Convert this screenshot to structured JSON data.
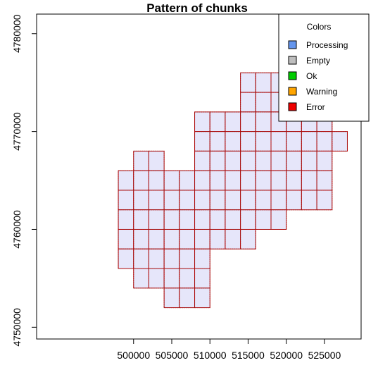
{
  "chart_data": {
    "type": "map",
    "title": "Pattern of chunks",
    "xlabel": "",
    "ylabel": "",
    "xlim": [
      487300,
      529800
    ],
    "ylim": [
      4748800,
      4782000
    ],
    "x_ticks": [
      500000,
      505000,
      510000,
      515000,
      520000,
      525000
    ],
    "x_tick_labels": [
      "500000",
      "505000",
      "510000",
      "515000",
      "520000",
      "525000"
    ],
    "y_ticks": [
      4750000,
      4760000,
      4770000,
      4780000
    ],
    "y_tick_labels": [
      "4750000",
      "4760000",
      "4770000",
      "4780000"
    ],
    "chunk_size": 2000,
    "grid_origin": [
      498000,
      4752000
    ],
    "rows": [
      {
        "y": 4776000,
        "x_from": 522000,
        "x_to": 524000
      },
      {
        "y": 4774000,
        "x_from": 514000,
        "x_to": 524000
      },
      {
        "y": 4772000,
        "x_from": 514000,
        "x_to": 524000
      },
      {
        "y": 4770000,
        "x_from": 508000,
        "x_to": 524000
      },
      {
        "y": 4768000,
        "x_from": 508000,
        "x_to": 526000
      },
      {
        "y": 4766000,
        "x_from": 500000,
        "x_to": 502000
      },
      {
        "y": 4766000,
        "x_from": 508000,
        "x_to": 524000
      },
      {
        "y": 4764000,
        "x_from": 498000,
        "x_to": 524000
      },
      {
        "y": 4762000,
        "x_from": 498000,
        "x_to": 524000
      },
      {
        "y": 4760000,
        "x_from": 498000,
        "x_to": 518000
      },
      {
        "y": 4758000,
        "x_from": 498000,
        "x_to": 514000
      },
      {
        "y": 4756000,
        "x_from": 498000,
        "x_to": 508000
      },
      {
        "y": 4754000,
        "x_from": 500000,
        "x_to": 508000
      },
      {
        "y": 4752000,
        "x_from": 504000,
        "x_to": 508000
      }
    ],
    "special_chunks": [
      {
        "x": 498000,
        "y": 4758000,
        "status": "Processing"
      },
      {
        "x": 498000,
        "y": 4756000,
        "status": "Warning"
      }
    ],
    "default_status": "Empty",
    "legend": {
      "title": "Colors",
      "placement": "top-right",
      "entries": [
        {
          "label": "Processing",
          "color": "#6495ed"
        },
        {
          "label": "Empty",
          "color": "#bebebe"
        },
        {
          "label": "Ok",
          "color": "#00cd00"
        },
        {
          "label": "Warning",
          "color": "#ffa500"
        },
        {
          "label": "Error",
          "color": "#ee0000"
        }
      ]
    },
    "colors": {
      "chunk_fill": "#e6e6fa",
      "chunk_border": "#8b1a1a"
    }
  }
}
